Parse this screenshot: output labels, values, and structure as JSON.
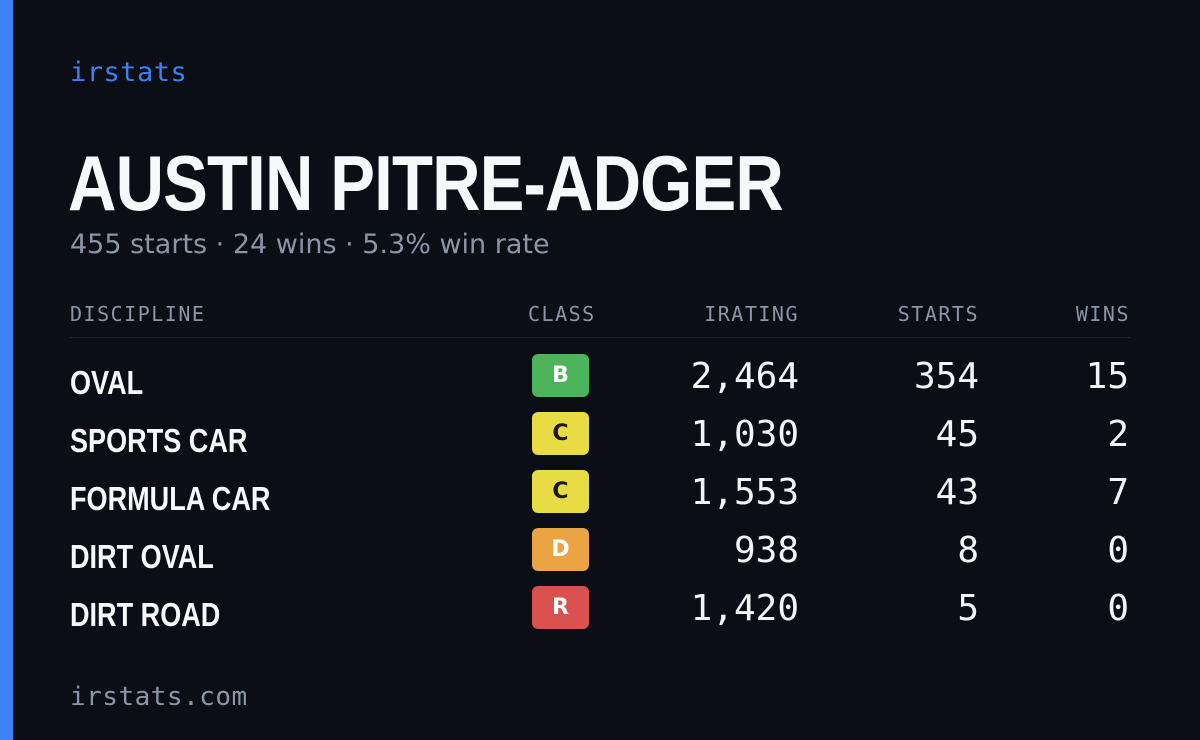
{
  "colors": {
    "accent": "#3b82f6",
    "background": "#0b0e15"
  },
  "brand": "irstats",
  "driver": {
    "name": "AUSTIN PITRE-ADGER",
    "summary": "455 starts · 24 wins · 5.3% win rate"
  },
  "table": {
    "headers": {
      "discipline": "DISCIPLINE",
      "class": "CLASS",
      "irating": "IRATING",
      "starts": "STARTS",
      "wins": "WINS"
    },
    "rows": [
      {
        "discipline": "OVAL",
        "class": "B",
        "class_color": "#4cb55c",
        "irating": "2,464",
        "starts": "354",
        "wins": "15"
      },
      {
        "discipline": "SPORTS CAR",
        "class": "C",
        "class_color": "#e8dc45",
        "irating": "1,030",
        "starts": "45",
        "wins": "2"
      },
      {
        "discipline": "FORMULA CAR",
        "class": "C",
        "class_color": "#e8dc45",
        "irating": "1,553",
        "starts": "43",
        "wins": "7"
      },
      {
        "discipline": "DIRT OVAL",
        "class": "D",
        "class_color": "#eaa444",
        "irating": "938",
        "starts": "8",
        "wins": "0"
      },
      {
        "discipline": "DIRT ROAD",
        "class": "R",
        "class_color": "#d9504f",
        "irating": "1,420",
        "starts": "5",
        "wins": "0"
      }
    ]
  },
  "footer": "irstats.com"
}
